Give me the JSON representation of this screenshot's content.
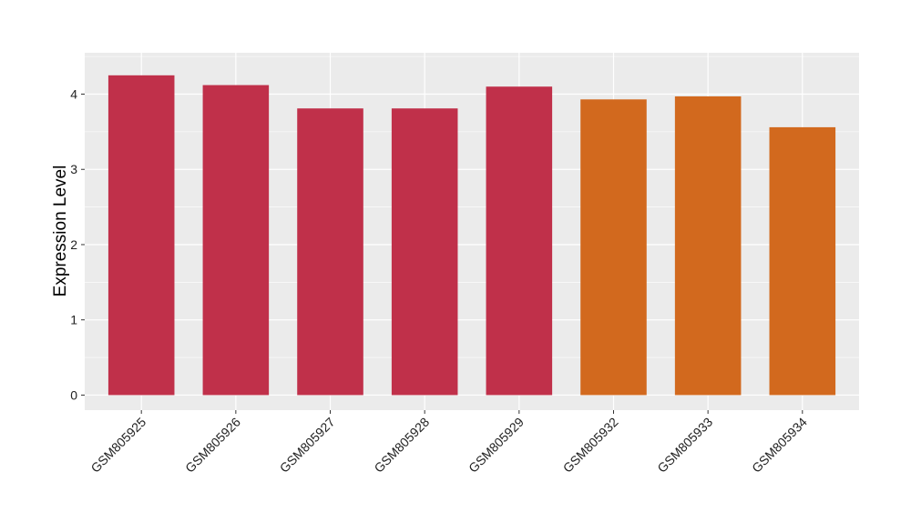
{
  "chart_data": {
    "type": "bar",
    "title": "",
    "xlabel": "",
    "ylabel": "Expression Level",
    "categories": [
      "GSM805925",
      "GSM805926",
      "GSM805927",
      "GSM805928",
      "GSM805929",
      "GSM805932",
      "GSM805933",
      "GSM805934"
    ],
    "values": [
      4.25,
      4.12,
      3.81,
      3.81,
      4.1,
      3.93,
      3.97,
      3.56
    ],
    "bar_colors": [
      "#c0304a",
      "#c0304a",
      "#c0304a",
      "#c0304a",
      "#c0304a",
      "#d2691e",
      "#d2691e",
      "#d2691e"
    ],
    "ylim": [
      -0.2,
      4.55
    ],
    "yticks": [
      0,
      1,
      2,
      3,
      4
    ],
    "ytick_labels": [
      "0",
      "1",
      "2",
      "3",
      "4"
    ],
    "grid": true,
    "legend": "none",
    "panel_background": "#ebebeb",
    "gridline_color": "#ffffff"
  }
}
